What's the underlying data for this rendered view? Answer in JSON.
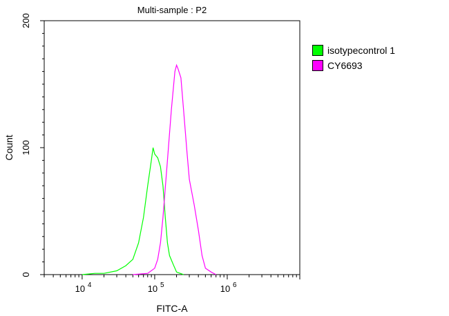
{
  "chart_data": {
    "type": "line",
    "title": "Multi-sample : P2",
    "xlabel": "FITC-A",
    "ylabel": "Count",
    "xscale": "log",
    "xlim": [
      3000,
      10000000
    ],
    "ylim": [
      0,
      200
    ],
    "x_ticks": [
      {
        "base": "10",
        "exp": "4",
        "value": 10000
      },
      {
        "base": "10",
        "exp": "5",
        "value": 100000
      },
      {
        "base": "10",
        "exp": "6",
        "value": 1000000
      }
    ],
    "y_ticks": [
      {
        "label": "0",
        "value": 0
      },
      {
        "label": "100",
        "value": 100
      },
      {
        "label": "200",
        "value": 200
      }
    ],
    "legend_position": "right",
    "series": [
      {
        "name": "isotypecontrol 1",
        "color": "#00ff00",
        "x": [
          10000,
          15000,
          20000,
          30000,
          40000,
          50000,
          60000,
          70000,
          80000,
          90000,
          95000,
          100000,
          110000,
          120000,
          130000,
          140000,
          150000,
          160000,
          180000,
          200000,
          250000
        ],
        "y": [
          0,
          1,
          1,
          3,
          7,
          12,
          25,
          45,
          70,
          90,
          100,
          95,
          92,
          85,
          70,
          45,
          25,
          15,
          8,
          2,
          0
        ]
      },
      {
        "name": "CY6693",
        "color": "#ff00ff",
        "x": [
          50000,
          80000,
          100000,
          110000,
          120000,
          130000,
          150000,
          170000,
          190000,
          200000,
          210000,
          230000,
          250000,
          280000,
          300000,
          350000,
          400000,
          450000,
          500000,
          600000,
          700000
        ],
        "y": [
          0,
          1,
          5,
          12,
          25,
          45,
          90,
          130,
          160,
          165,
          162,
          155,
          130,
          95,
          75,
          55,
          35,
          15,
          5,
          2,
          0
        ]
      }
    ]
  }
}
